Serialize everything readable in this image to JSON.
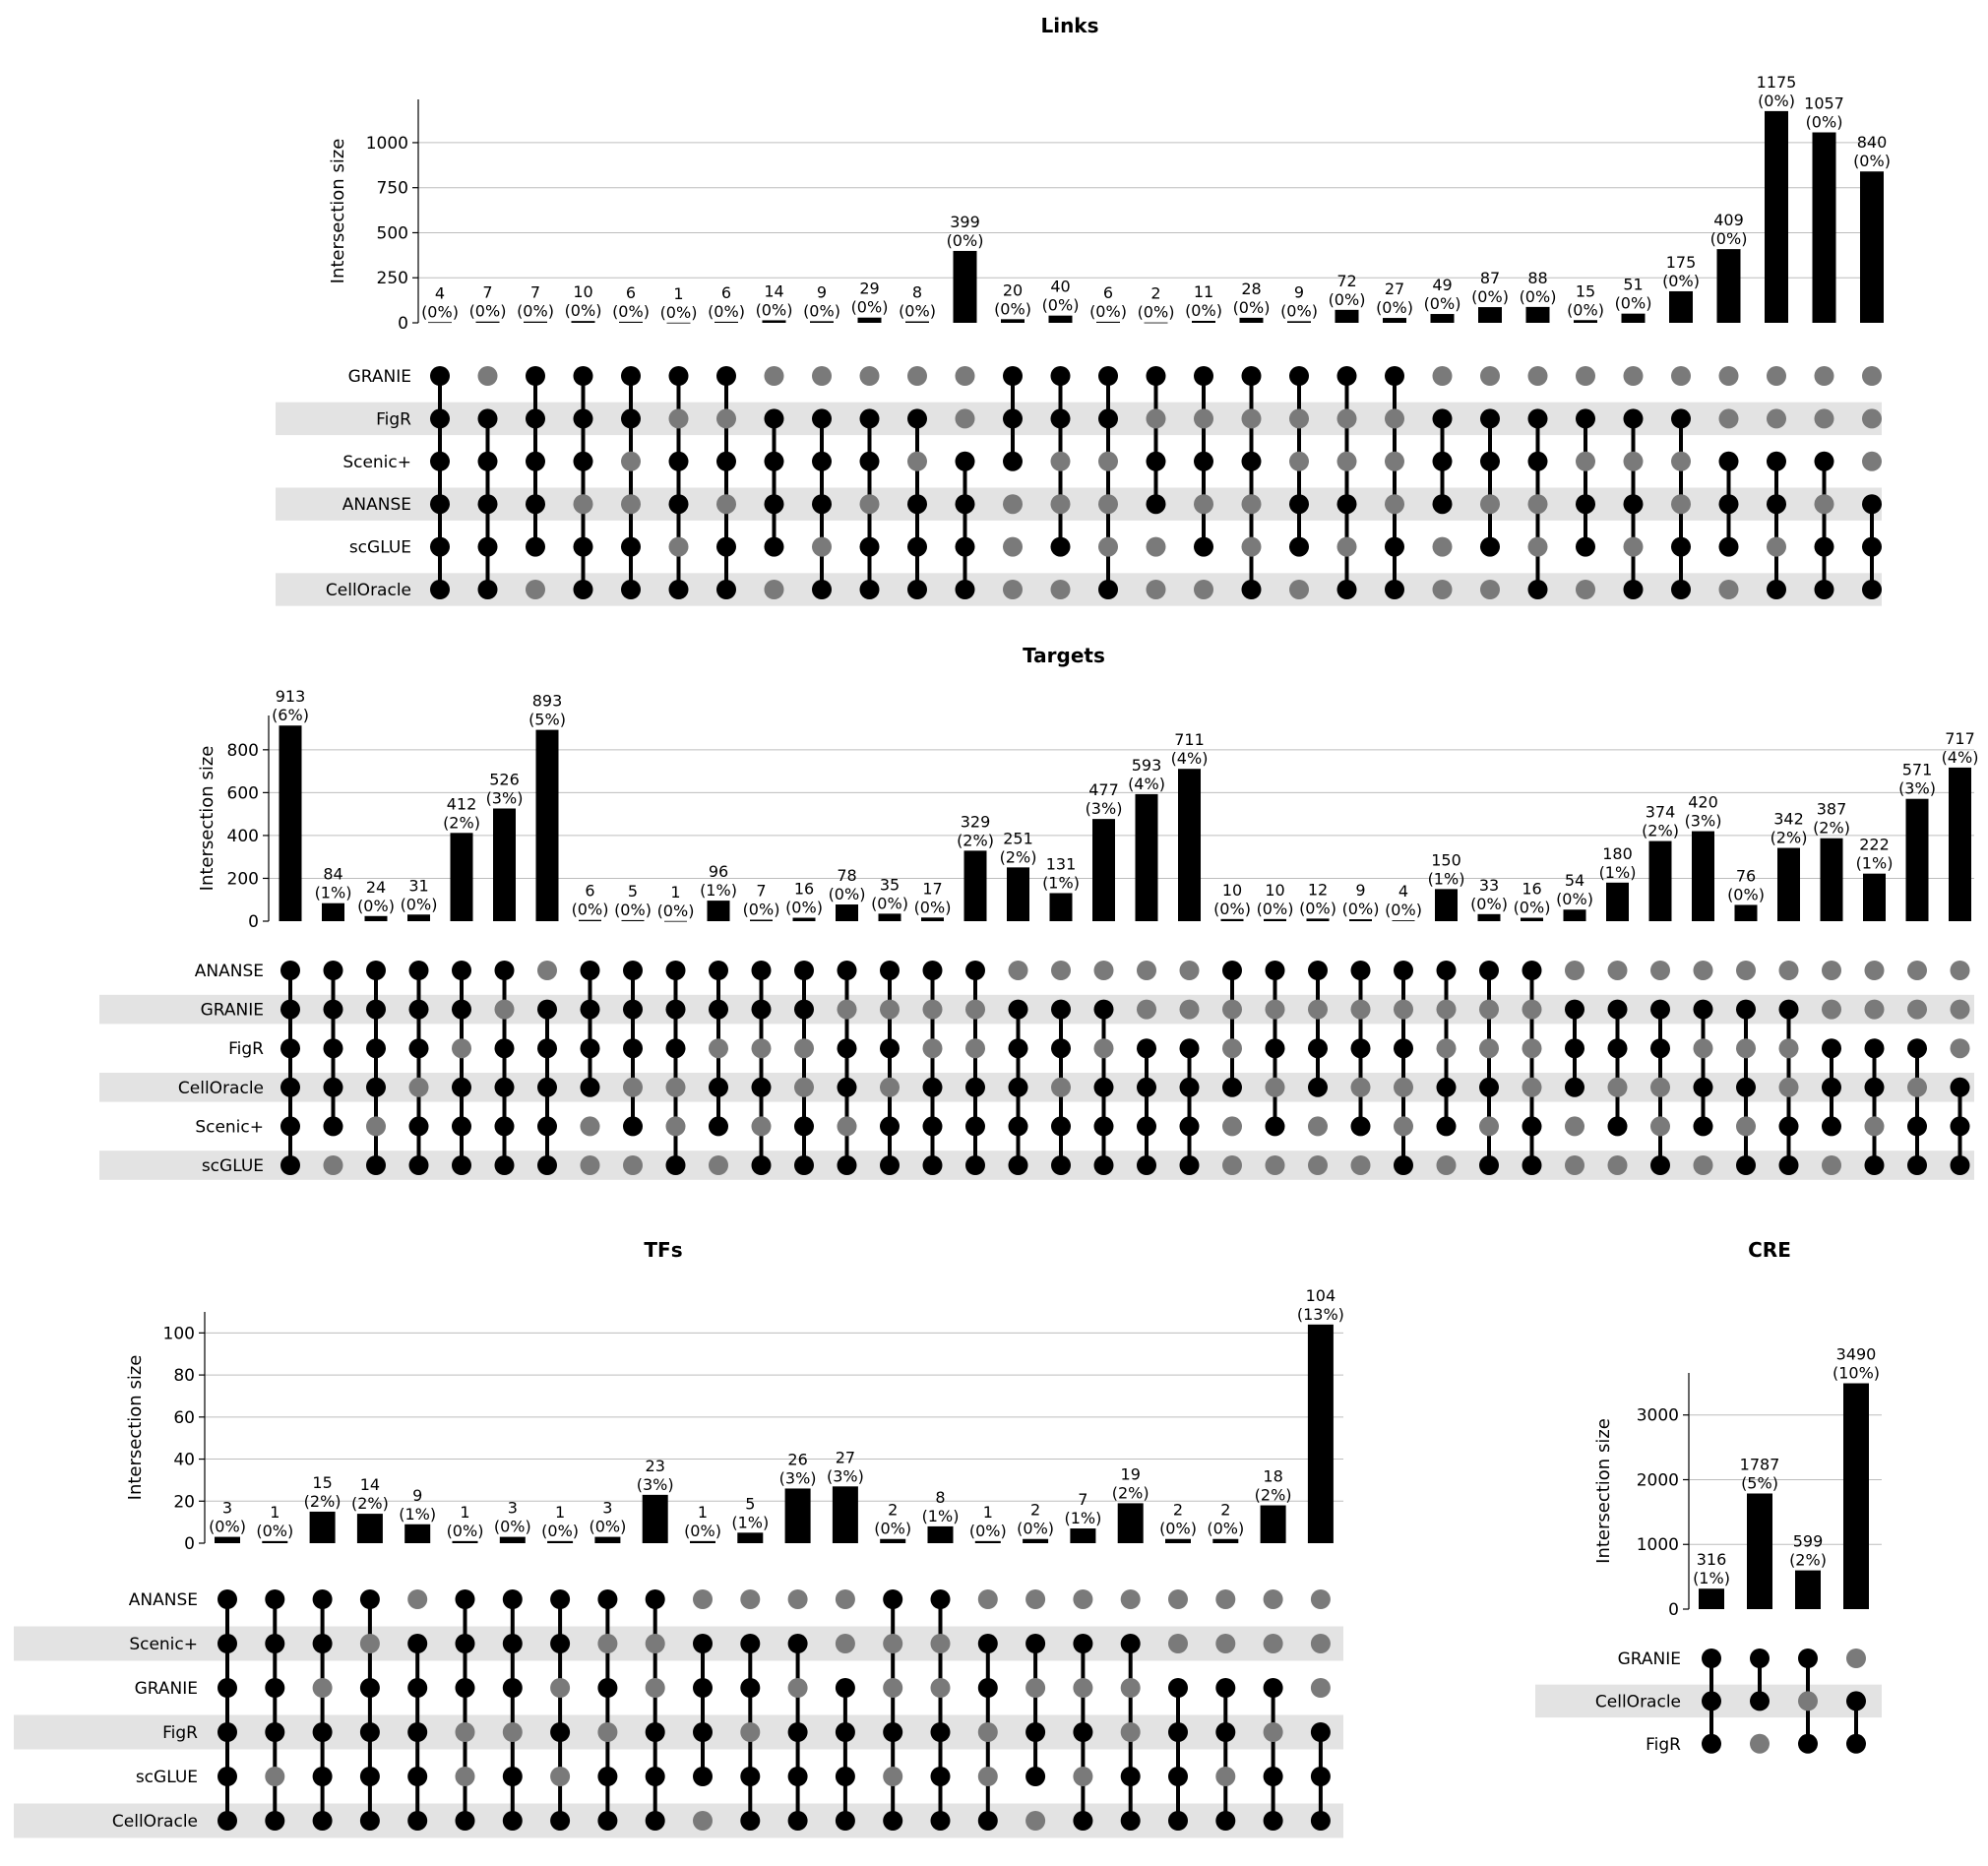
{
  "styles": {
    "filled_color": "#000000",
    "empty_color": "#7a7a7a",
    "band_color": "#e3e3e3",
    "grid_color": "#bdbdbd",
    "bar_color": "#000000"
  },
  "chart_data": [
    {
      "type": "bar",
      "subtype": "upset",
      "title": "Links",
      "ylabel": "Intersection size",
      "ylim": [
        0,
        1240
      ],
      "yticks": [
        0,
        250,
        500,
        750,
        1000
      ],
      "grid": true,
      "sets": [
        "GRANIE",
        "FigR",
        "Scenic+",
        "ANANSE",
        "scGLUE",
        "CellOracle"
      ],
      "values": [
        4,
        7,
        7,
        10,
        6,
        1,
        6,
        14,
        9,
        29,
        8,
        399,
        20,
        40,
        6,
        2,
        11,
        28,
        9,
        72,
        27,
        49,
        87,
        88,
        15,
        51,
        175,
        409,
        1175,
        1057,
        840
      ],
      "percents": [
        "(0%)",
        "(0%)",
        "(0%)",
        "(0%)",
        "(0%)",
        "(0%)",
        "(0%)",
        "(0%)",
        "(0%)",
        "(0%)",
        "(0%)",
        "(0%)",
        "(0%)",
        "(0%)",
        "(0%)",
        "(0%)",
        "(0%)",
        "(0%)",
        "(0%)",
        "(0%)",
        "(0%)",
        "(0%)",
        "(0%)",
        "(0%)",
        "(0%)",
        "(0%)",
        "(0%)",
        "(0%)",
        "(0%)",
        "(0%)",
        "(0%)"
      ],
      "membership": [
        "111111",
        "011111",
        "111110",
        "111011",
        "110011",
        "101101",
        "101011",
        "011110",
        "011101",
        "011011",
        "010111",
        "001111",
        "111000",
        "110010",
        "110001",
        "101100",
        "101010",
        "101001",
        "100110",
        "100101",
        "100011",
        "011100",
        "011010",
        "011001",
        "010110",
        "010101",
        "010011",
        "001110",
        "001101",
        "001011",
        "000111"
      ]
    },
    {
      "type": "bar",
      "subtype": "upset",
      "title": "Targets",
      "ylabel": "Intersection size",
      "ylim": [
        0,
        960
      ],
      "yticks": [
        0,
        200,
        400,
        600,
        800
      ],
      "grid": true,
      "sets": [
        "ANANSE",
        "GRANIE",
        "FigR",
        "CellOracle",
        "Scenic+",
        "scGLUE"
      ],
      "values": [
        913,
        84,
        24,
        31,
        412,
        526,
        893,
        6,
        5,
        1,
        96,
        7,
        16,
        78,
        35,
        17,
        329,
        251,
        131,
        477,
        593,
        711,
        10,
        10,
        12,
        9,
        4,
        150,
        33,
        16,
        54,
        180,
        374,
        420,
        76,
        342,
        387,
        222,
        571,
        717
      ],
      "percents": [
        "(6%)",
        "(1%)",
        "(0%)",
        "(0%)",
        "(2%)",
        "(3%)",
        "(5%)",
        "(0%)",
        "(0%)",
        "(0%)",
        "(1%)",
        "(0%)",
        "(0%)",
        "(0%)",
        "(0%)",
        "(0%)",
        "(2%)",
        "(2%)",
        "(1%)",
        "(3%)",
        "(4%)",
        "(4%)",
        "(0%)",
        "(0%)",
        "(0%)",
        "(0%)",
        "(0%)",
        "(1%)",
        "(0%)",
        "(0%)",
        "(0%)",
        "(1%)",
        "(2%)",
        "(3%)",
        "(0%)",
        "(2%)",
        "(2%)",
        "(1%)",
        "(3%)",
        "(4%)"
      ],
      "membership": [
        "111111",
        "111110",
        "111101",
        "111011",
        "110111",
        "101111",
        "011111",
        "111100",
        "111010",
        "111001",
        "110110",
        "110101",
        "110011",
        "101101",
        "101011",
        "100111",
        "100111",
        "011111",
        "011011",
        "010111",
        "001111",
        "001111",
        "100100",
        "101010",
        "101100",
        "101010",
        "101001",
        "100110",
        "100101",
        "100011",
        "011100",
        "011010",
        "011001",
        "010110",
        "010101",
        "010011",
        "001110",
        "001101",
        "001011",
        "000111"
      ]
    },
    {
      "type": "bar",
      "subtype": "upset",
      "title": "TFs",
      "ylabel": "Intersection size",
      "ylim": [
        0,
        110
      ],
      "yticks": [
        0,
        20,
        40,
        60,
        80,
        100
      ],
      "grid": true,
      "sets": [
        "ANANSE",
        "Scenic+",
        "GRANIE",
        "FigR",
        "scGLUE",
        "CellOracle"
      ],
      "values": [
        3,
        1,
        15,
        14,
        9,
        1,
        3,
        1,
        3,
        23,
        1,
        5,
        26,
        27,
        2,
        8,
        1,
        2,
        7,
        19,
        2,
        2,
        18,
        104
      ],
      "percents": [
        "(0%)",
        "(0%)",
        "(2%)",
        "(2%)",
        "(1%)",
        "(0%)",
        "(0%)",
        "(0%)",
        "(0%)",
        "(3%)",
        "(0%)",
        "(1%)",
        "(3%)",
        "(3%)",
        "(0%)",
        "(1%)",
        "(0%)",
        "(0%)",
        "(1%)",
        "(2%)",
        "(0%)",
        "(0%)",
        "(2%)",
        "(13%)"
      ],
      "membership": [
        "111111",
        "111101",
        "110111",
        "101111",
        "011111",
        "111001",
        "111011",
        "110101",
        "101011",
        "100111",
        "011110",
        "011011",
        "010111",
        "001111",
        "100101",
        "100111",
        "011001",
        "010110",
        "010101",
        "010011",
        "001111",
        "001101",
        "001011",
        "000111"
      ]
    },
    {
      "type": "bar",
      "subtype": "upset",
      "title": "CRE",
      "ylabel": "Intersection size",
      "ylim": [
        0,
        3650
      ],
      "yticks": [
        0,
        1000,
        2000,
        3000
      ],
      "grid": true,
      "sets": [
        "GRANIE",
        "CellOracle",
        "FigR"
      ],
      "values": [
        316,
        1787,
        599,
        3490
      ],
      "percents": [
        "(1%)",
        "(5%)",
        "(2%)",
        "(10%)"
      ],
      "membership": [
        "111",
        "110",
        "101",
        "011"
      ]
    }
  ]
}
